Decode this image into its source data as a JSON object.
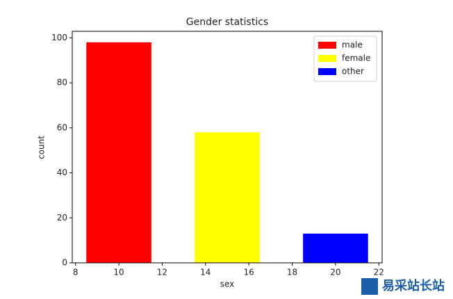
{
  "chart_data": {
    "type": "bar",
    "title": "Gender statistics",
    "x_label": "sex",
    "y_label": "count",
    "series": [
      {
        "name": "male",
        "color": "#ff0000",
        "x": [
          10
        ],
        "values": [
          98
        ]
      },
      {
        "name": "female",
        "color": "#ffff00",
        "x": [
          15
        ],
        "values": [
          58
        ]
      },
      {
        "name": "other",
        "color": "#0000ff",
        "x": [
          20
        ],
        "values": [
          13
        ]
      }
    ],
    "bar_width": 3,
    "xlim": [
      7.85,
      22.15
    ],
    "xticks": [
      8,
      10,
      12,
      14,
      16,
      18,
      20,
      22
    ],
    "ylim": [
      0,
      102.9
    ],
    "yticks": [
      0,
      20,
      40,
      60,
      80,
      100
    ],
    "grid": false,
    "legend": "upper right"
  },
  "watermark": {
    "text": "易采站长站"
  }
}
